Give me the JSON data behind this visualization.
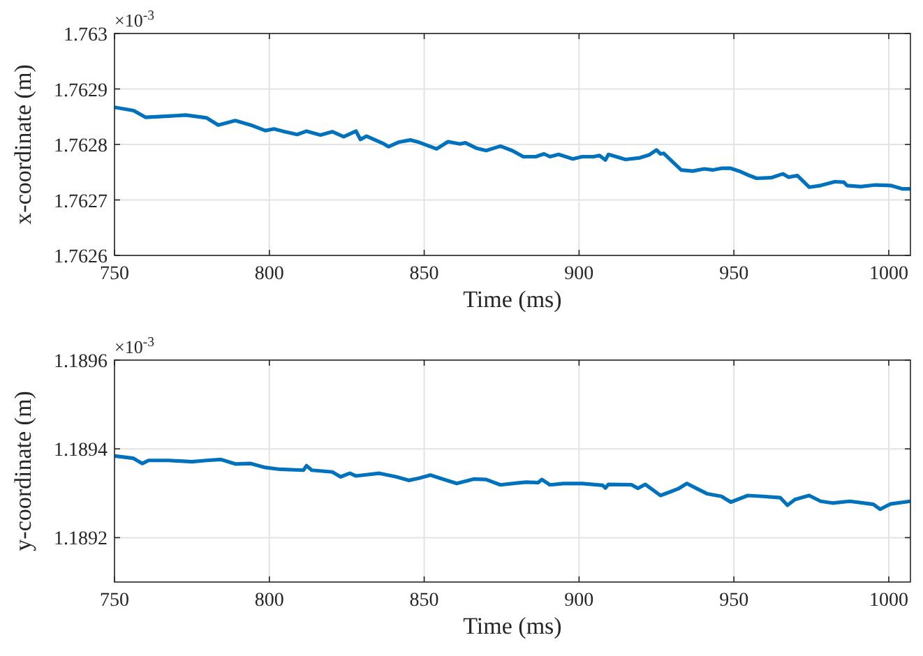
{
  "chart_data": [
    {
      "type": "line",
      "xlabel": "Time (ms)",
      "ylabel": "x-coordinate (m)",
      "annotations": [
        "×10$^{-3}$"
      ],
      "xlim": [
        750,
        1007
      ],
      "xticks": [
        750,
        800,
        850,
        900,
        950,
        1000
      ],
      "ylim": [
        1.7626,
        1.763
      ],
      "yticks": [
        1.7626,
        1.7627,
        1.7628,
        1.7629,
        1.763
      ],
      "grid": true,
      "marker": "none",
      "line_style": "solid",
      "series": [
        {
          "color": "#0072bd",
          "x": [
            750,
            756.2,
            760,
            767.5,
            773,
            779.7,
            783.5,
            789,
            794,
            798.7,
            801.5,
            805,
            809,
            812,
            816.5,
            820.3,
            824,
            828,
            829.4,
            831.4,
            837,
            838.5,
            841.7,
            845.5,
            848.3,
            854,
            857.7,
            861.5,
            863.3,
            867,
            870,
            874.6,
            878.4,
            882,
            886,
            888.7,
            890.6,
            893.4,
            898,
            901,
            904.7,
            906.6,
            908.5,
            909.5,
            915,
            919.7,
            922.6,
            925,
            926.3,
            927.3,
            933,
            936.7,
            940.4,
            943.2,
            946,
            949,
            951.7,
            954.5,
            957.3,
            962,
            965.8,
            967.7,
            970.5,
            974.3,
            978,
            982.7,
            985.5,
            986.5,
            991,
            995.7,
            1000.6,
            1004.3,
            1007
          ],
          "values": [
            1.762867,
            1.762861,
            1.762849,
            1.762851,
            1.762853,
            1.762848,
            1.762835,
            1.762843,
            1.762835,
            1.762825,
            1.762828,
            1.762823,
            1.762818,
            1.762824,
            1.762817,
            1.762823,
            1.762814,
            1.762824,
            1.762809,
            1.762815,
            1.762801,
            1.762796,
            1.762804,
            1.762808,
            1.762804,
            1.762792,
            1.762805,
            1.762801,
            1.762803,
            1.762793,
            1.762789,
            1.762797,
            1.762789,
            1.762778,
            1.762778,
            1.762783,
            1.762778,
            1.762782,
            1.762774,
            1.762778,
            1.762778,
            1.76278,
            1.762772,
            1.762782,
            1.762773,
            1.762776,
            1.762781,
            1.76279,
            1.762783,
            1.762784,
            1.762754,
            1.762752,
            1.762756,
            1.762754,
            1.762757,
            1.762757,
            1.762752,
            1.762745,
            1.762739,
            1.76274,
            1.762747,
            1.762741,
            1.762744,
            1.762723,
            1.762726,
            1.762733,
            1.762732,
            1.762726,
            1.762724,
            1.762727,
            1.762726,
            1.76272,
            1.76272
          ]
        }
      ]
    },
    {
      "type": "line",
      "xlabel": "Time (ms)",
      "ylabel": "y-coordinate (m)",
      "annotations": [
        "×10$^{-3}$"
      ],
      "xlim": [
        750,
        1007
      ],
      "xticks": [
        750,
        800,
        850,
        900,
        950,
        1000
      ],
      "ylim": [
        1.1891,
        1.1896
      ],
      "yticks": [
        1.1892,
        1.1894,
        1.1896
      ],
      "grid": true,
      "marker": "none",
      "line_style": "solid",
      "series": [
        {
          "color": "#0072bd",
          "x": [
            750,
            756,
            759,
            761,
            767.5,
            775,
            779.7,
            784.4,
            789,
            794,
            798.7,
            803.4,
            811,
            812,
            813.7,
            820.3,
            823,
            826,
            828,
            835.5,
            841,
            845,
            848.3,
            852,
            856,
            860.5,
            866,
            870,
            874.6,
            880,
            883,
            886.8,
            888,
            890.6,
            895,
            901,
            907.6,
            908.5,
            909.5,
            917,
            919,
            921.4,
            926.3,
            929,
            932,
            934.8,
            937.6,
            941.3,
            946,
            949,
            954.5,
            959.3,
            965,
            967.3,
            969.7,
            974.3,
            978,
            981.8,
            987.4,
            995,
            997.2,
            1000.6,
            1007
          ],
          "values": [
            1.189384,
            1.189379,
            1.189367,
            1.189374,
            1.189374,
            1.189371,
            1.189374,
            1.189376,
            1.189366,
            1.189367,
            1.189358,
            1.189354,
            1.189352,
            1.189362,
            1.189352,
            1.189348,
            1.189337,
            1.189345,
            1.189339,
            1.189345,
            1.189337,
            1.189329,
            1.189334,
            1.189341,
            1.189332,
            1.189322,
            1.189332,
            1.189331,
            1.189319,
            1.189323,
            1.189325,
            1.189324,
            1.189331,
            1.189319,
            1.189322,
            1.189322,
            1.189318,
            1.189312,
            1.18932,
            1.189319,
            1.189311,
            1.18932,
            1.189295,
            1.189302,
            1.18931,
            1.189322,
            1.189312,
            1.189299,
            1.189293,
            1.18928,
            1.189295,
            1.189293,
            1.18929,
            1.189273,
            1.189286,
            1.189295,
            1.189282,
            1.189278,
            1.189282,
            1.189275,
            1.189264,
            1.189276,
            1.189282
          ]
        }
      ]
    }
  ]
}
